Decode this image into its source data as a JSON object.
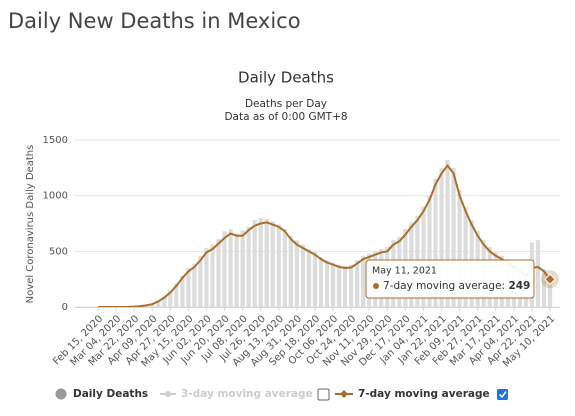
{
  "header": {
    "title": "Daily New Deaths in Mexico"
  },
  "chart_data": {
    "type": "bar_line",
    "title": "Daily Deaths",
    "subtitle": [
      "Deaths per Day",
      "Data as of 0:00 GMT+8"
    ],
    "y_axis_label": "Novel Coronavirus Daily Deaths",
    "categories": [
      "Feb 15, 2020",
      null,
      null,
      "Mar 04, 2020",
      null,
      null,
      "Mar 22, 2020",
      null,
      null,
      "Apr 09, 2020",
      null,
      null,
      "Apr 27, 2020",
      null,
      null,
      "May 15, 2020",
      null,
      null,
      "Jun 02, 2020",
      null,
      null,
      "Jun 20, 2020",
      null,
      null,
      "Jul 08, 2020",
      null,
      null,
      "Jul 26, 2020",
      null,
      null,
      "Aug 13, 2020",
      null,
      null,
      "Aug 31, 2020",
      null,
      null,
      "Sep 18, 2020",
      null,
      null,
      "Oct 06, 2020",
      null,
      null,
      "Oct 24, 2020",
      null,
      null,
      "Nov 11, 2020",
      null,
      null,
      "Nov 29, 2020",
      null,
      null,
      "Dec 17, 2020",
      null,
      null,
      "Jan 04, 2021",
      null,
      null,
      "Jan 22, 2021",
      null,
      null,
      "Feb 09, 2021",
      null,
      null,
      "Feb 27, 2021",
      null,
      null,
      "Mar 17, 2021",
      null,
      null,
      "Apr 04, 2021",
      null,
      null,
      "Apr 22, 2021",
      null,
      null,
      "May 10, 2021"
    ],
    "series": [
      {
        "name": "Daily Deaths",
        "color": "#dcdcdc",
        "legend_color": "#999999",
        "kind": "bar",
        "values": [
          0,
          0,
          0,
          0,
          0,
          0,
          4,
          10,
          18,
          30,
          60,
          95,
          150,
          210,
          280,
          350,
          390,
          460,
          530,
          560,
          610,
          680,
          700,
          660,
          690,
          720,
          780,
          800,
          790,
          770,
          740,
          700,
          640,
          600,
          560,
          520,
          500,
          450,
          420,
          400,
          380,
          370,
          380,
          420,
          460,
          480,
          500,
          520,
          540,
          600,
          630,
          700,
          760,
          820,
          900,
          1000,
          1150,
          1250,
          1320,
          1250,
          1050,
          900,
          780,
          680,
          600,
          540,
          490,
          460,
          430,
          390,
          350,
          300,
          580,
          600,
          340,
          260
        ]
      },
      {
        "name": "3-day moving average",
        "color": "#cccccc",
        "hidden": true
      },
      {
        "name": "7-day moving average",
        "color": "#a8702b",
        "kind": "line",
        "values": [
          0,
          0,
          0,
          0,
          0,
          0,
          3,
          8,
          15,
          25,
          50,
          85,
          130,
          190,
          260,
          320,
          360,
          420,
          490,
          520,
          570,
          620,
          660,
          640,
          640,
          690,
          730,
          750,
          760,
          740,
          720,
          680,
          610,
          560,
          530,
          500,
          470,
          430,
          400,
          380,
          360,
          350,
          355,
          390,
          430,
          450,
          470,
          490,
          500,
          560,
          590,
          650,
          720,
          780,
          860,
          960,
          1100,
          1200,
          1270,
          1200,
          1000,
          860,
          740,
          640,
          560,
          500,
          460,
          430,
          400,
          360,
          320,
          280,
          350,
          360,
          320,
          249
        ]
      }
    ],
    "ylim": [
      0,
      1500
    ],
    "yticks": [
      0,
      500,
      1000,
      1500
    ],
    "grid": true,
    "tooltip": {
      "date": "May 11, 2021",
      "label": "7-day moving average:",
      "value": 249
    }
  }
}
